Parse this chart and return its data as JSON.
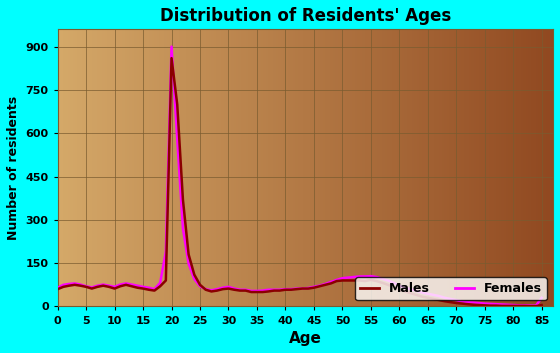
{
  "title": "Distribution of Residents' Ages",
  "xlabel": "Age",
  "ylabel": "Number of residents",
  "xlim": [
    0,
    87
  ],
  "ylim": [
    0,
    960
  ],
  "yticks": [
    0,
    150,
    300,
    450,
    600,
    750,
    900
  ],
  "xticks": [
    0,
    5,
    10,
    15,
    20,
    25,
    30,
    35,
    40,
    45,
    50,
    55,
    60,
    65,
    70,
    75,
    80,
    85
  ],
  "bg_outer": "#00FFFF",
  "bg_inner_left": "#D4A868",
  "bg_inner_right": "#904820",
  "male_color": "#8B0000",
  "female_color": "#FF00FF",
  "males_ages": [
    0,
    1,
    2,
    3,
    4,
    5,
    6,
    7,
    8,
    9,
    10,
    11,
    12,
    13,
    14,
    15,
    16,
    17,
    18,
    19,
    20,
    21,
    22,
    23,
    24,
    25,
    26,
    27,
    28,
    29,
    30,
    31,
    32,
    33,
    34,
    35,
    36,
    37,
    38,
    39,
    40,
    41,
    42,
    43,
    44,
    45,
    46,
    47,
    48,
    49,
    50,
    51,
    52,
    53,
    54,
    55,
    56,
    57,
    58,
    59,
    60,
    61,
    62,
    63,
    64,
    65,
    66,
    67,
    68,
    69,
    70,
    71,
    72,
    73,
    74,
    75,
    76,
    77,
    78,
    79,
    80,
    81,
    82,
    83,
    84,
    85
  ],
  "males_vals": [
    60,
    68,
    72,
    75,
    72,
    68,
    62,
    68,
    72,
    68,
    62,
    70,
    75,
    70,
    65,
    62,
    58,
    55,
    70,
    90,
    860,
    700,
    370,
    180,
    110,
    75,
    58,
    52,
    55,
    60,
    62,
    58,
    55,
    55,
    50,
    50,
    50,
    52,
    55,
    55,
    58,
    58,
    60,
    62,
    62,
    65,
    70,
    75,
    80,
    88,
    90,
    90,
    90,
    90,
    88,
    92,
    88,
    82,
    75,
    68,
    58,
    52,
    46,
    40,
    34,
    30,
    26,
    22,
    18,
    15,
    12,
    10,
    8,
    6,
    5,
    4,
    3,
    3,
    2,
    2,
    2,
    2,
    2,
    1,
    1,
    5
  ],
  "females_ages": [
    0,
    1,
    2,
    3,
    4,
    5,
    6,
    7,
    8,
    9,
    10,
    11,
    12,
    13,
    14,
    15,
    16,
    17,
    18,
    19,
    20,
    21,
    22,
    23,
    24,
    25,
    26,
    27,
    28,
    29,
    30,
    31,
    32,
    33,
    34,
    35,
    36,
    37,
    38,
    39,
    40,
    41,
    42,
    43,
    44,
    45,
    46,
    47,
    48,
    49,
    50,
    51,
    52,
    53,
    54,
    55,
    56,
    57,
    58,
    59,
    60,
    61,
    62,
    63,
    64,
    65,
    66,
    67,
    68,
    69,
    70,
    71,
    72,
    73,
    74,
    75,
    76,
    77,
    78,
    79,
    80,
    81,
    82,
    83,
    84,
    85
  ],
  "females_vals": [
    65,
    75,
    78,
    80,
    76,
    70,
    66,
    72,
    76,
    72,
    68,
    76,
    80,
    76,
    72,
    68,
    65,
    60,
    82,
    190,
    900,
    580,
    270,
    148,
    95,
    70,
    60,
    56,
    60,
    65,
    68,
    62,
    58,
    58,
    54,
    54,
    55,
    58,
    58,
    58,
    60,
    60,
    62,
    62,
    64,
    68,
    72,
    78,
    85,
    92,
    98,
    100,
    102,
    104,
    104,
    105,
    102,
    96,
    90,
    82,
    72,
    65,
    60,
    54,
    48,
    44,
    40,
    36,
    30,
    26,
    22,
    18,
    15,
    14,
    12,
    10,
    9,
    8,
    7,
    6,
    5,
    4,
    4,
    3,
    3,
    30
  ]
}
